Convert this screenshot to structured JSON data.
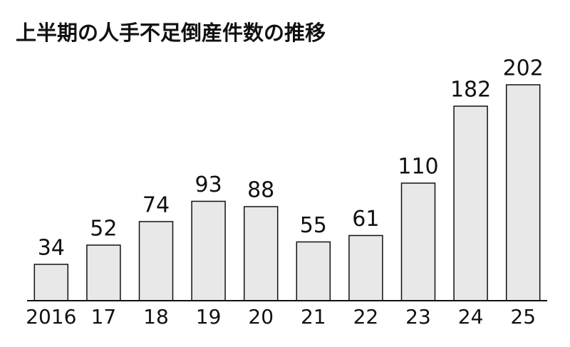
{
  "chart_data": {
    "type": "bar",
    "title": "上半期の人手不足倒産件数の推移",
    "categories": [
      "2016",
      "17",
      "18",
      "19",
      "20",
      "21",
      "22",
      "23",
      "24",
      "25"
    ],
    "values": [
      34,
      52,
      74,
      93,
      88,
      55,
      61,
      110,
      182,
      202
    ],
    "color": "#e8e8e8"
  }
}
